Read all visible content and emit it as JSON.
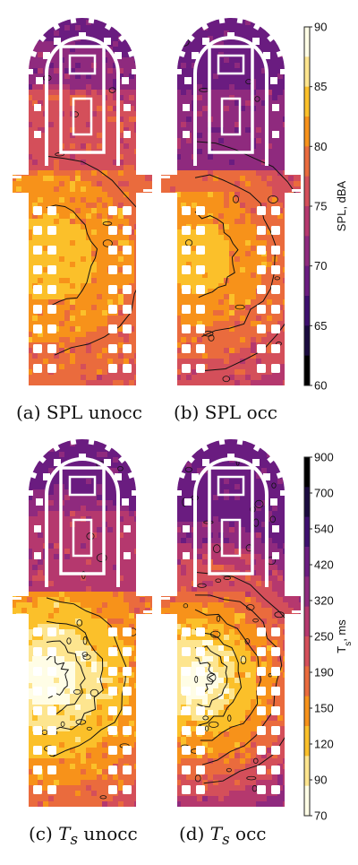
{
  "figure": {
    "panels": [
      {
        "id": "a",
        "caption_prefix": "(a) ",
        "caption_sym": "",
        "caption_sub": "",
        "caption_rest": "SPL unocc",
        "colormap": "spl",
        "variant": "unocc"
      },
      {
        "id": "b",
        "caption_prefix": "(b) ",
        "caption_sym": "",
        "caption_sub": "",
        "caption_rest": "SPL occ",
        "colormap": "spl",
        "variant": "occ"
      },
      {
        "id": "c",
        "caption_prefix": "(c) ",
        "caption_sym": "T",
        "caption_sub": "s",
        "caption_rest": " unocc",
        "colormap": "ts",
        "variant": "unocc"
      },
      {
        "id": "d",
        "caption_prefix": "(d) ",
        "caption_sym": "T",
        "caption_sub": "s",
        "caption_rest": " occ",
        "colormap": "ts",
        "variant": "occ"
      }
    ],
    "colorbars": {
      "spl": {
        "title": "SPL, dBA",
        "ticks": [
          "60",
          "65",
          "70",
          "75",
          "80",
          "85",
          "90"
        ],
        "colors": [
          "#000000",
          "#1b0b3f",
          "#3d0f6e",
          "#6a1c80",
          "#8f2a7e",
          "#b5386e",
          "#d44f5a",
          "#ea6b3d",
          "#f7921a",
          "#fbc02a",
          "#fde58f",
          "#fffde6"
        ]
      },
      "ts": {
        "title_main": "T",
        "title_sub": "s",
        "title_rest": ", ms",
        "ticks": [
          "900",
          "700",
          "540",
          "420",
          "320",
          "250",
          "190",
          "150",
          "120",
          "90",
          "70"
        ],
        "colors": [
          "#000000",
          "#1b0b3f",
          "#3d0f6e",
          "#6a1c80",
          "#8f2a7e",
          "#b5386e",
          "#d44f5a",
          "#ea6b3d",
          "#f7921a",
          "#fbc02a",
          "#fde58f",
          "#fffde6"
        ]
      }
    }
  }
}
